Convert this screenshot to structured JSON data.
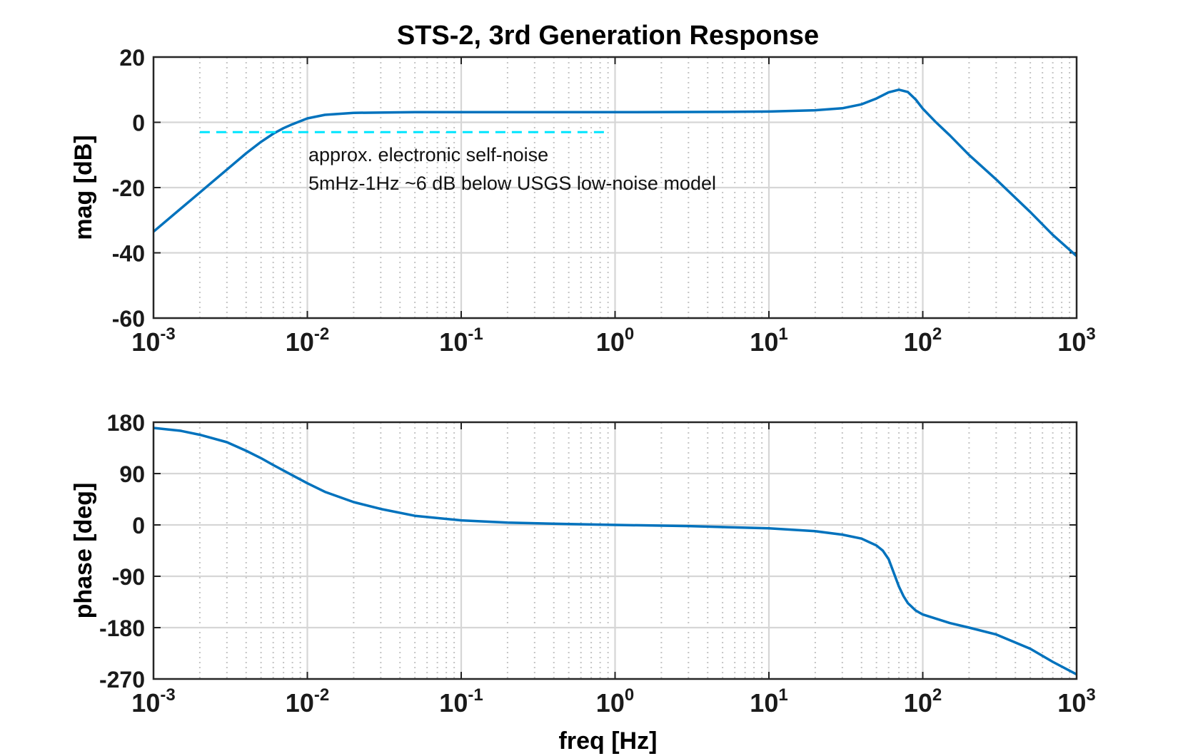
{
  "chart_data": [
    {
      "type": "line",
      "title": "STS-2, 3rd Generation Response",
      "xlabel": "",
      "ylabel": "mag [dB]",
      "xscale": "log",
      "xlim": [
        0.001,
        1000
      ],
      "ylim": [
        -60,
        20
      ],
      "x_ticks": [
        {
          "base": "10",
          "exp": "-3"
        },
        {
          "base": "10",
          "exp": "-2"
        },
        {
          "base": "10",
          "exp": "-1"
        },
        {
          "base": "10",
          "exp": "0"
        },
        {
          "base": "10",
          "exp": "1"
        },
        {
          "base": "10",
          "exp": "2"
        },
        {
          "base": "10",
          "exp": "3"
        }
      ],
      "y_ticks": [
        "20",
        "0",
        "-20",
        "-40",
        "-60"
      ],
      "grid": true,
      "series": [
        {
          "color": "#0072BD",
          "points": [
            [
              0.001,
              -33.5
            ],
            [
              0.002,
              -21.5
            ],
            [
              0.003,
              -14.5
            ],
            [
              0.004,
              -9.5
            ],
            [
              0.005,
              -6.0
            ],
            [
              0.006,
              -3.5
            ],
            [
              0.007,
              -1.8
            ],
            [
              0.008,
              -0.6
            ],
            [
              0.01,
              1.2
            ],
            [
              0.013,
              2.3
            ],
            [
              0.02,
              2.9
            ],
            [
              0.05,
              3.1
            ],
            [
              0.1,
              3.1
            ],
            [
              1,
              3.1
            ],
            [
              5,
              3.2
            ],
            [
              10,
              3.3
            ],
            [
              20,
              3.7
            ],
            [
              30,
              4.3
            ],
            [
              40,
              5.5
            ],
            [
              50,
              7.3
            ],
            [
              60,
              9.2
            ],
            [
              70,
              10.0
            ],
            [
              80,
              9.3
            ],
            [
              90,
              7.0
            ],
            [
              100,
              4.2
            ],
            [
              120,
              0.3
            ],
            [
              150,
              -4.0
            ],
            [
              200,
              -10.0
            ],
            [
              300,
              -17.5
            ],
            [
              500,
              -27.5
            ],
            [
              700,
              -34.5
            ],
            [
              1000,
              -41.0
            ]
          ]
        },
        {
          "color": "#00E5FF",
          "dashed": true,
          "points": [
            [
              0.002,
              -3.0
            ],
            [
              0.9,
              -3.0
            ]
          ]
        }
      ],
      "annotations": [
        "approx. electronic self-noise",
        "5mHz-1Hz ~6 dB below USGS low-noise model"
      ]
    },
    {
      "type": "line",
      "title": "",
      "xlabel": "freq [Hz]",
      "ylabel": "phase [deg]",
      "xscale": "log",
      "xlim": [
        0.001,
        1000
      ],
      "ylim": [
        -270,
        180
      ],
      "x_ticks": [
        {
          "base": "10",
          "exp": "-3"
        },
        {
          "base": "10",
          "exp": "-2"
        },
        {
          "base": "10",
          "exp": "-1"
        },
        {
          "base": "10",
          "exp": "0"
        },
        {
          "base": "10",
          "exp": "1"
        },
        {
          "base": "10",
          "exp": "2"
        },
        {
          "base": "10",
          "exp": "3"
        }
      ],
      "y_ticks": [
        "180",
        "90",
        "0",
        "-90",
        "-180",
        "-270"
      ],
      "grid": true,
      "series": [
        {
          "color": "#0072BD",
          "points": [
            [
              0.001,
              170
            ],
            [
              0.0015,
              165
            ],
            [
              0.002,
              158
            ],
            [
              0.003,
              145
            ],
            [
              0.004,
              130
            ],
            [
              0.005,
              117
            ],
            [
              0.006,
              105
            ],
            [
              0.008,
              87
            ],
            [
              0.01,
              73
            ],
            [
              0.013,
              58
            ],
            [
              0.02,
              40
            ],
            [
              0.03,
              28
            ],
            [
              0.05,
              16
            ],
            [
              0.1,
              8
            ],
            [
              0.2,
              4
            ],
            [
              0.5,
              1.5
            ],
            [
              1,
              0
            ],
            [
              3,
              -2
            ],
            [
              10,
              -6
            ],
            [
              20,
              -11
            ],
            [
              30,
              -17
            ],
            [
              40,
              -24
            ],
            [
              50,
              -36
            ],
            [
              55,
              -45
            ],
            [
              60,
              -60
            ],
            [
              65,
              -85
            ],
            [
              70,
              -108
            ],
            [
              75,
              -125
            ],
            [
              80,
              -137
            ],
            [
              90,
              -150
            ],
            [
              100,
              -157
            ],
            [
              150,
              -172
            ],
            [
              200,
              -180
            ],
            [
              300,
              -192
            ],
            [
              500,
              -217
            ],
            [
              700,
              -240
            ],
            [
              1000,
              -262
            ]
          ]
        }
      ]
    }
  ]
}
